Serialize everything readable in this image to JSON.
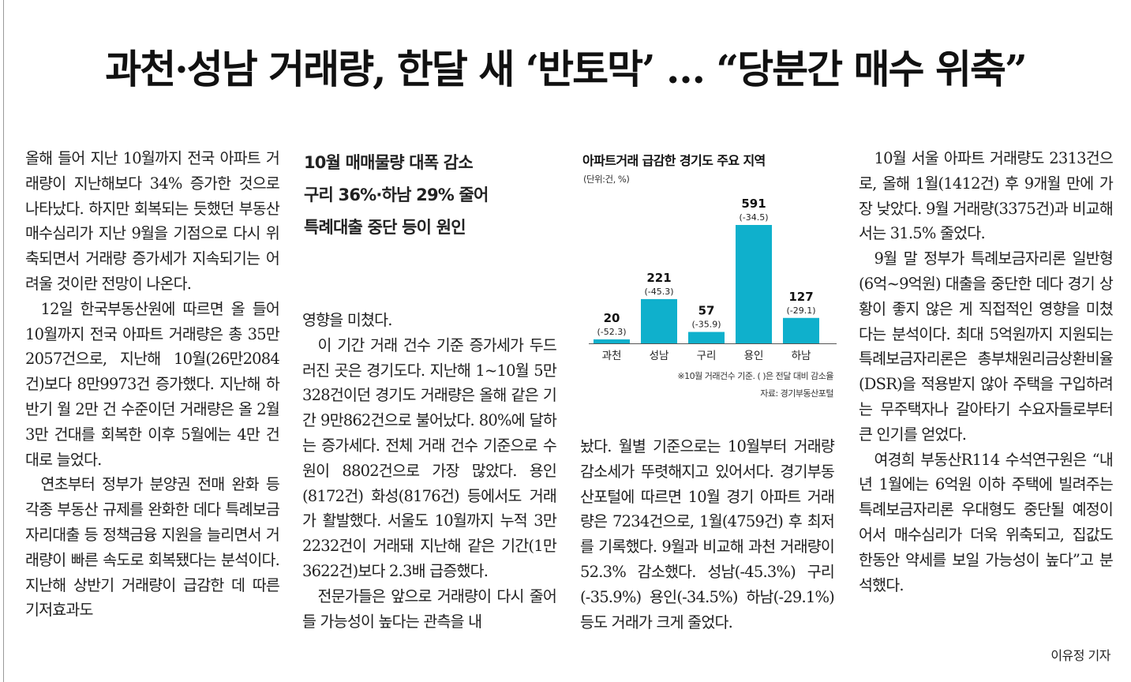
{
  "headline": "과천·성남 거래량, 한달 새 ‘반토막’ … “당분간 매수 위축”",
  "subheads": [
    "10월 매매물량 대폭 감소",
    "구리 36%·하남 29% 줄어",
    "특례대출 중단 등이 원인"
  ],
  "columns": {
    "col1": [
      "올해 들어 지난 10월까지 전국 아파트 거래량이 지난해보다 34% 증가한 것으로 나타났다. 하지만 회복되는 듯했던 부동산매수심리가 지난 9월을 기점으로 다시 위축되면서 거래량 증가세가 지속되기는 어려울 것이란 전망이 나온다.",
      "12일 한국부동산원에 따르면 올 들어 10월까지 전국 아파트 거래량은 총 35만2057건으로, 지난해 10월(26만2084건)보다 8만9973건 증가했다. 지난해 하반기 월 2만 건 수준이던 거래량은 올 2월 3만 건대를 회복한 이후 5월에는 4만 건대로 늘었다.",
      "연초부터 정부가 분양권 전매 완화 등 각종 부동산 규제를 완화한 데다 특례보금자리대출 등 정책금융 지원을 늘리면서 거래량이 빠른 속도로 회복됐다는 분석이다. 지난해 상반기 거래량이 급감한 데 따른 기저효과도"
    ],
    "col2": [
      "영향을 미쳤다.",
      "이 기간 거래 건수 기준 증가세가 두드러진 곳은 경기도다. 지난해 1~10월 5만328건이던 경기도 거래량은 올해 같은 기간 9만862건으로 불어났다. 80%에 달하는 증가세다. 전체 거래 건수 기준으로 수원이 8802건으로 가장 많았다. 용인(8172건) 화성(8176건) 등에서도 거래가 활발했다. 서울도 10월까지 누적 3만2232건이 거래돼 지난해 같은 기간(1만3622건)보다 2.3배 급증했다.",
      "전문가들은 앞으로 거래량이 다시 줄어들 가능성이 높다는 관측을 내"
    ],
    "col3": [
      "놨다. 월별 기준으로는 10월부터 거래량 감소세가 뚜렷해지고 있어서다. 경기부동산포털에 따르면 10월 경기 아파트 거래량은 7234건으로, 1월(4759건) 후 최저를 기록했다. 9월과 비교해 과천 거래량이 52.3% 감소했다. 성남(-45.3%) 구리(-35.9%) 용인(-34.5%) 하남(-29.1%) 등도 거래가 크게 줄었다."
    ],
    "col4": [
      "10월 서울 아파트 거래량도 2313건으로, 올해 1월(1412건) 후 9개월 만에 가장 낮았다. 9월 거래량(3375건)과 비교해서는 31.5% 줄었다.",
      "9월 말 정부가 특례보금자리론 일반형(6억~9억원) 대출을 중단한 데다 경기 상황이 좋지 않은 게 직접적인 영향을 미쳤다는 분석이다. 최대 5억원까지 지원되는 특례보금자리론은 총부채원리금상환비율(DSR)을 적용받지 않아 주택을 구입하려는 무주택자나 갈아타기 수요자들로부터 큰 인기를 얻었다.",
      "여경희 부동산R114 수석연구원은 “내년 1월에는 6억원 이하 주택에 빌려주는 특례보금자리론 우대형도 중단될 예정이어서 매수심리가 더욱 위축되고, 집값도 한동안 약세를 보일 가능성이 높다”고 분석했다."
    ]
  },
  "byline": "이유정 기자",
  "chart_data": {
    "type": "bar",
    "title": "아파트거래 급감한 경기도 주요 지역",
    "unit": "(단위:건, %)",
    "categories": [
      "과천",
      "성남",
      "구리",
      "용인",
      "하남"
    ],
    "values": [
      20,
      221,
      57,
      591,
      127
    ],
    "change_labels": [
      "(-52.3)",
      "(-45.3)",
      "(-35.9)",
      "(-34.5)",
      "(-29.1)"
    ],
    "ylim": [
      0,
      591
    ],
    "note": "※10월 거래건수 기준. ( )은 전달 대비 감소율",
    "source": "자료: 경기부동산포털",
    "bar_color": "#0fb0cc"
  }
}
